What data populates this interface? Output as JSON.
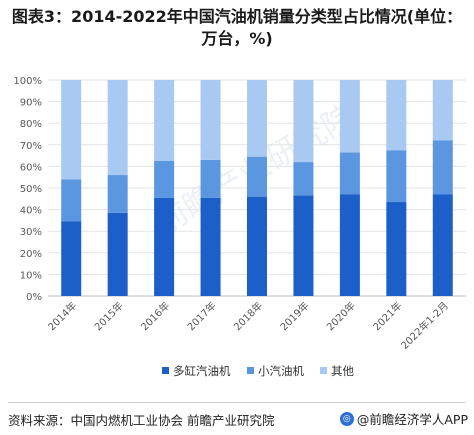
{
  "title": "图表3：2014-2022年中国汽油机销量分类型占比情况(单位：万台，%)",
  "source": "资料来源：中国内燃机工业协会 前瞻产业研究院",
  "brand": "@前瞻经济学人APP",
  "watermark": "前瞻产业研究院",
  "colors": {
    "series1": "#1c5fc8",
    "series2": "#5b97e0",
    "series3": "#a8c9f2",
    "grid": "#e3e3e3",
    "axis": "#bfbfbf",
    "tick": "#595959"
  },
  "chart_data": {
    "type": "bar",
    "stacked": true,
    "categories": [
      "2014年",
      "2015年",
      "2016年",
      "2017年",
      "2018年",
      "2019年",
      "2020年",
      "2021年",
      "2022年1-2月"
    ],
    "series": [
      {
        "name": "多缸汽油机",
        "values": [
          34.5,
          38.5,
          45.5,
          45.5,
          46.0,
          46.5,
          47.0,
          43.5,
          47.0
        ]
      },
      {
        "name": "小汽油机",
        "values": [
          19.5,
          17.5,
          17.0,
          17.5,
          18.5,
          15.5,
          19.5,
          24.0,
          25.0
        ]
      },
      {
        "name": "其他",
        "values": [
          46.0,
          44.0,
          37.5,
          37.0,
          35.5,
          38.0,
          33.5,
          32.5,
          28.0
        ]
      }
    ],
    "yticks": [
      "0%",
      "10%",
      "20%",
      "30%",
      "40%",
      "50%",
      "60%",
      "70%",
      "80%",
      "90%",
      "100%"
    ],
    "ylim": [
      0,
      100
    ],
    "legend_position": "bottom"
  }
}
